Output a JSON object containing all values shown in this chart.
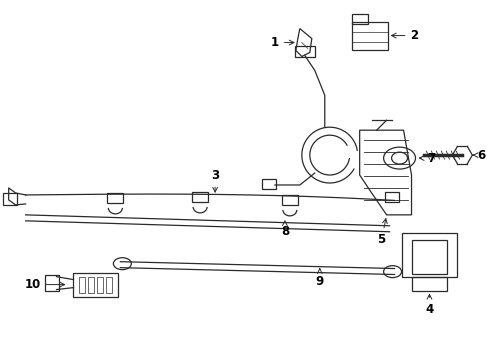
{
  "bg_color": "#ffffff",
  "line_color": "#2a2a2a",
  "text_color": "#000000",
  "figsize": [
    4.89,
    3.6
  ],
  "dpi": 100,
  "lw": 0.9
}
